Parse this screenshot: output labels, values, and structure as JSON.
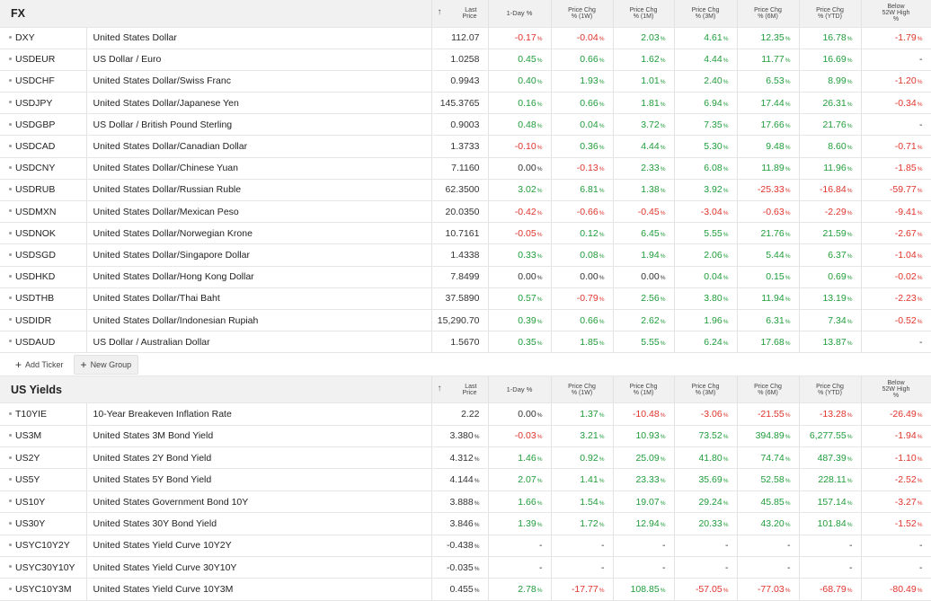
{
  "fx": {
    "title": "FX",
    "headers": {
      "last_a": "Last",
      "last_b": "Price",
      "d1": "1-Day %",
      "w1_a": "Price Chg",
      "w1_b": "% (1W)",
      "m1_a": "Price Chg",
      "m1_b": "% (1M)",
      "m3_a": "Price Chg",
      "m3_b": "% (3M)",
      "m6_a": "Price Chg",
      "m6_b": "% (6M)",
      "ytd_a": "Price Chg",
      "ytd_b": "% (YTD)",
      "w52_a": "Below",
      "w52_b": "52W High",
      "w52_c": "%"
    },
    "sort_arrow": "↑",
    "rows": [
      {
        "sym": "DXY",
        "name": "United States Dollar",
        "last": "112.07",
        "d1": "-0.17",
        "w1": "-0.04",
        "m1": "2.03",
        "m3": "4.61",
        "m6": "12.35",
        "ytd": "16.78",
        "w52": "-1.79"
      },
      {
        "sym": "USDEUR",
        "name": "US Dollar / Euro",
        "last": "1.0258",
        "d1": "0.45",
        "w1": "0.66",
        "m1": "1.62",
        "m3": "4.44",
        "m6": "11.77",
        "ytd": "16.69",
        "w52": "-"
      },
      {
        "sym": "USDCHF",
        "name": "United States Dollar/Swiss Franc",
        "last": "0.9943",
        "d1": "0.40",
        "w1": "1.93",
        "m1": "1.01",
        "m3": "2.40",
        "m6": "6.53",
        "ytd": "8.99",
        "w52": "-1.20"
      },
      {
        "sym": "USDJPY",
        "name": "United States Dollar/Japanese Yen",
        "last": "145.3765",
        "d1": "0.16",
        "w1": "0.66",
        "m1": "1.81",
        "m3": "6.94",
        "m6": "17.44",
        "ytd": "26.31",
        "w52": "-0.34"
      },
      {
        "sym": "USDGBP",
        "name": "US Dollar / British Pound Sterling",
        "last": "0.9003",
        "d1": "0.48",
        "w1": "0.04",
        "m1": "3.72",
        "m3": "7.35",
        "m6": "17.66",
        "ytd": "21.76",
        "w52": "-"
      },
      {
        "sym": "USDCAD",
        "name": "United States Dollar/Canadian Dollar",
        "last": "1.3733",
        "d1": "-0.10",
        "w1": "0.36",
        "m1": "4.44",
        "m3": "5.30",
        "m6": "9.48",
        "ytd": "8.60",
        "w52": "-0.71"
      },
      {
        "sym": "USDCNY",
        "name": "United States Dollar/Chinese Yuan",
        "last": "7.1160",
        "d1": "0.00",
        "w1": "-0.13",
        "m1": "2.33",
        "m3": "6.08",
        "m6": "11.89",
        "ytd": "11.96",
        "w52": "-1.85"
      },
      {
        "sym": "USDRUB",
        "name": "United States Dollar/Russian Ruble",
        "last": "62.3500",
        "d1": "3.02",
        "w1": "6.81",
        "m1": "1.38",
        "m3": "3.92",
        "m6": "-25.33",
        "ytd": "-16.84",
        "w52": "-59.77"
      },
      {
        "sym": "USDMXN",
        "name": "United States Dollar/Mexican Peso",
        "last": "20.0350",
        "d1": "-0.42",
        "w1": "-0.66",
        "m1": "-0.45",
        "m3": "-3.04",
        "m6": "-0.63",
        "ytd": "-2.29",
        "w52": "-9.41"
      },
      {
        "sym": "USDNOK",
        "name": "United States Dollar/Norwegian Krone",
        "last": "10.7161",
        "d1": "-0.05",
        "w1": "0.12",
        "m1": "6.45",
        "m3": "5.55",
        "m6": "21.76",
        "ytd": "21.59",
        "w52": "-2.67"
      },
      {
        "sym": "USDSGD",
        "name": "United States Dollar/Singapore Dollar",
        "last": "1.4338",
        "d1": "0.33",
        "w1": "0.08",
        "m1": "1.94",
        "m3": "2.06",
        "m6": "5.44",
        "ytd": "6.37",
        "w52": "-1.04"
      },
      {
        "sym": "USDHKD",
        "name": "United States Dollar/Hong Kong Dollar",
        "last": "7.8499",
        "d1": "0.00",
        "w1": "0.00",
        "m1": "0.00",
        "m3": "0.04",
        "m6": "0.15",
        "ytd": "0.69",
        "w52": "-0.02"
      },
      {
        "sym": "USDTHB",
        "name": "United States Dollar/Thai Baht",
        "last": "37.5890",
        "d1": "0.57",
        "w1": "-0.79",
        "m1": "2.56",
        "m3": "3.80",
        "m6": "11.94",
        "ytd": "13.19",
        "w52": "-2.23"
      },
      {
        "sym": "USDIDR",
        "name": "United States Dollar/Indonesian Rupiah",
        "last": "15,290.70",
        "d1": "0.39",
        "w1": "0.66",
        "m1": "2.62",
        "m3": "1.96",
        "m6": "6.31",
        "ytd": "7.34",
        "w52": "-0.52"
      },
      {
        "sym": "USDAUD",
        "name": "US Dollar / Australian Dollar",
        "last": "1.5670",
        "d1": "0.35",
        "w1": "1.85",
        "m1": "5.55",
        "m3": "6.24",
        "m6": "17.68",
        "ytd": "13.87",
        "w52": "-"
      }
    ],
    "add_ticker": "Add Ticker",
    "new_group": "New Group"
  },
  "yields": {
    "title": "US Yields",
    "rows": [
      {
        "sym": "T10YIE",
        "name": "10-Year Breakeven Inflation Rate",
        "last": "2.22",
        "last_pct": false,
        "d1": "0.00",
        "w1": "1.37",
        "m1": "-10.48",
        "m3": "-3.06",
        "m6": "-21.55",
        "ytd": "-13.28",
        "w52": "-26.49"
      },
      {
        "sym": "US3M",
        "name": "United States 3M Bond Yield",
        "last": "3.380",
        "last_pct": true,
        "d1": "-0.03",
        "w1": "3.21",
        "m1": "10.93",
        "m3": "73.52",
        "m6": "394.89",
        "ytd": "6,277.55",
        "w52": "-1.94"
      },
      {
        "sym": "US2Y",
        "name": "United States 2Y Bond Yield",
        "last": "4.312",
        "last_pct": true,
        "d1": "1.46",
        "w1": "0.92",
        "m1": "25.09",
        "m3": "41.80",
        "m6": "74.74",
        "ytd": "487.39",
        "w52": "-1.10"
      },
      {
        "sym": "US5Y",
        "name": "United States 5Y Bond Yield",
        "last": "4.144",
        "last_pct": true,
        "d1": "2.07",
        "w1": "1.41",
        "m1": "23.33",
        "m3": "35.69",
        "m6": "52.58",
        "ytd": "228.11",
        "w52": "-2.52"
      },
      {
        "sym": "US10Y",
        "name": "United States Government Bond 10Y",
        "last": "3.888",
        "last_pct": true,
        "d1": "1.66",
        "w1": "1.54",
        "m1": "19.07",
        "m3": "29.24",
        "m6": "45.85",
        "ytd": "157.14",
        "w52": "-3.27"
      },
      {
        "sym": "US30Y",
        "name": "United States 30Y Bond Yield",
        "last": "3.846",
        "last_pct": true,
        "d1": "1.39",
        "w1": "1.72",
        "m1": "12.94",
        "m3": "20.33",
        "m6": "43.20",
        "ytd": "101.84",
        "w52": "-1.52"
      },
      {
        "sym": "USYC10Y2Y",
        "name": "United States Yield Curve 10Y2Y",
        "last": "-0.438",
        "last_pct": true,
        "d1": "-",
        "w1": "-",
        "m1": "-",
        "m3": "-",
        "m6": "-",
        "ytd": "-",
        "w52": "-"
      },
      {
        "sym": "USYC30Y10Y",
        "name": "United States Yield Curve 30Y10Y",
        "last": "-0.035",
        "last_pct": true,
        "d1": "-",
        "w1": "-",
        "m1": "-",
        "m3": "-",
        "m6": "-",
        "ytd": "-",
        "w52": "-"
      },
      {
        "sym": "USYC10Y3M",
        "name": "United States Yield Curve 10Y3M",
        "last": "0.455",
        "last_pct": true,
        "d1": "2.78",
        "w1": "-17.77",
        "m1": "108.85",
        "m3": "-57.05",
        "m6": "-77.03",
        "ytd": "-68.79",
        "w52": "-80.49"
      }
    ]
  },
  "pct_symbol": "%",
  "colors": {
    "positive": "#1f9d3a",
    "negative": "#e0342c",
    "header_bg": "#f1f1f1"
  }
}
